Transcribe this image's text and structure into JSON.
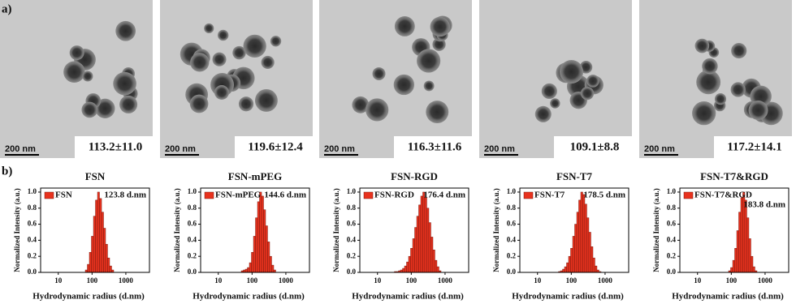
{
  "panel_a": {
    "label": "a)",
    "images": [
      {
        "scale": "200 nm",
        "size": "113.2±11.0"
      },
      {
        "scale": "200 nm",
        "size": "119.6±12.4"
      },
      {
        "scale": "200 nm",
        "size": "116.3±11.6"
      },
      {
        "scale": "200 nm",
        "size": "109.1±8.8"
      },
      {
        "scale": "200 nm",
        "size": "117.2±14.1"
      }
    ]
  },
  "panel_b": {
    "label": "b)"
  },
  "chart_data": [
    {
      "type": "histogram",
      "title": "FSN",
      "annotation": "123.8 d.nm",
      "xlabel": "Hydrodynamic radius (d.nm)",
      "ylabel": "Normalized Intensity (a.u.)",
      "bins": [
        31.6,
        36.3,
        41.7,
        47.9,
        55.0,
        63.1,
        72.4,
        83.2,
        95.5,
        110,
        126,
        145,
        166,
        191,
        219,
        251,
        288,
        331,
        380,
        437,
        501,
        575,
        661,
        759,
        871
      ],
      "series": [
        {
          "name": "FSN",
          "color": "#e8321e",
          "values": [
            0,
            0,
            0,
            0,
            0,
            0.03,
            0.1,
            0.25,
            0.45,
            0.7,
            0.9,
            1.0,
            0.92,
            0.75,
            0.55,
            0.35,
            0.18,
            0.08,
            0.03,
            0,
            0,
            0,
            0,
            0
          ]
        }
      ],
      "xlim": [
        3,
        5000
      ],
      "xticks": [
        10,
        100,
        1000
      ],
      "log_x": true,
      "ylim": [
        0,
        1.05
      ],
      "yticks": [
        {
          "value": 0,
          "label": "0.0"
        },
        0.2,
        0.4,
        0.6,
        0.8,
        {
          "value": 1,
          "label": "1.0"
        }
      ]
    },
    {
      "type": "histogram",
      "title": "FSN-mPEG",
      "annotation": "144.6 d.nm",
      "xlabel": "Hydrodynamic radius (d.nm)",
      "ylabel": "Normalized Intensity (a.u.)",
      "bins": [
        31.6,
        36.3,
        41.7,
        47.9,
        55.0,
        63.1,
        72.4,
        83.2,
        95.5,
        110,
        126,
        145,
        166,
        191,
        219,
        251,
        288,
        331,
        380,
        437,
        501,
        575,
        661,
        759,
        871
      ],
      "series": [
        {
          "name": "FSN-mPEG",
          "color": "#e8321e",
          "values": [
            0,
            0,
            0,
            0.02,
            0.03,
            0.04,
            0.06,
            0.12,
            0.25,
            0.45,
            0.68,
            0.88,
            1.0,
            0.95,
            0.78,
            0.58,
            0.38,
            0.2,
            0.09,
            0.03,
            0,
            0,
            0,
            0
          ]
        }
      ],
      "xlim": [
        3,
        5000
      ],
      "xticks": [
        10,
        100,
        1000
      ],
      "log_x": true,
      "ylim": [
        0,
        1.05
      ],
      "yticks": [
        {
          "value": 0,
          "label": "0.0"
        },
        0.2,
        0.4,
        0.6,
        0.8,
        {
          "value": 1,
          "label": "1.0"
        }
      ]
    },
    {
      "type": "histogram",
      "title": "FSN-RGD",
      "annotation": "176.4 d.nm",
      "xlabel": "Hydrodynamic radius (d.nm)",
      "ylabel": "Normalized Intensity (a.u.)",
      "bins": [
        31.6,
        36.3,
        41.7,
        47.9,
        55.0,
        63.1,
        72.4,
        83.2,
        95.5,
        110,
        126,
        145,
        166,
        191,
        219,
        251,
        288,
        331,
        380,
        437,
        501,
        575,
        661,
        759,
        871
      ],
      "series": [
        {
          "name": "FSN-RGD",
          "color": "#e8321e",
          "values": [
            0.01,
            0.01,
            0.02,
            0.03,
            0.05,
            0.08,
            0.13,
            0.2,
            0.3,
            0.42,
            0.56,
            0.7,
            0.84,
            0.95,
            1.0,
            0.93,
            0.8,
            0.62,
            0.44,
            0.28,
            0.15,
            0.07,
            0.02,
            0
          ]
        }
      ],
      "xlim": [
        3,
        5000
      ],
      "xticks": [
        10,
        100,
        1000
      ],
      "log_x": true,
      "ylim": [
        0,
        1.05
      ],
      "yticks": [
        {
          "value": 0,
          "label": "0.0"
        },
        0.2,
        0.4,
        0.6,
        0.8,
        {
          "value": 1,
          "label": "1.0"
        }
      ]
    },
    {
      "type": "histogram",
      "title": "FSN-T7",
      "annotation": "178.5 d.nm",
      "xlabel": "Hydrodynamic radius (d.nm)",
      "ylabel": "Normalized Intensity (a.u.)",
      "bins": [
        31.6,
        36.3,
        41.7,
        47.9,
        55.0,
        63.1,
        72.4,
        83.2,
        95.5,
        110,
        126,
        145,
        166,
        191,
        219,
        251,
        288,
        331,
        380,
        437,
        501,
        575,
        661,
        759,
        871
      ],
      "series": [
        {
          "name": "FSN-T7",
          "color": "#e8321e",
          "values": [
            0,
            0,
            0.01,
            0.02,
            0.04,
            0.07,
            0.12,
            0.2,
            0.3,
            0.45,
            0.6,
            0.75,
            0.9,
            1.0,
            0.97,
            0.85,
            0.68,
            0.5,
            0.32,
            0.18,
            0.08,
            0.03,
            0.01,
            0
          ]
        }
      ],
      "xlim": [
        3,
        5000
      ],
      "xticks": [
        10,
        100,
        1000
      ],
      "log_x": true,
      "ylim": [
        0,
        1.05
      ],
      "yticks": [
        {
          "value": 0,
          "label": "0.0"
        },
        0.2,
        0.4,
        0.6,
        0.8,
        {
          "value": 1,
          "label": "1.0"
        }
      ]
    },
    {
      "type": "histogram",
      "title": "FSN-T7&RGD",
      "annotation": "183.8 d.nm",
      "xlabel": "Hydrodynamic radius (d.nm)",
      "ylabel": "Normalized Intensity (a.u.)",
      "bins": [
        31.6,
        36.3,
        41.7,
        47.9,
        55.0,
        63.1,
        72.4,
        83.2,
        95.5,
        110,
        126,
        145,
        166,
        191,
        219,
        251,
        288,
        331,
        380,
        437,
        501,
        575,
        661,
        759,
        871
      ],
      "series": [
        {
          "name": "FSN-T7&RGD",
          "color": "#e8321e",
          "values": [
            0,
            0,
            0,
            0,
            0,
            0,
            0,
            0.02,
            0.06,
            0.15,
            0.3,
            0.52,
            0.75,
            0.93,
            1.0,
            0.9,
            0.68,
            0.42,
            0.2,
            0.07,
            0.02,
            0,
            0,
            0
          ]
        }
      ],
      "xlim": [
        3,
        5000
      ],
      "xticks": [
        10,
        100,
        1000
      ],
      "log_x": true,
      "ylim": [
        0,
        1.05
      ],
      "yticks": [
        {
          "value": 0,
          "label": "0.0"
        },
        0.2,
        0.4,
        0.6,
        0.8,
        {
          "value": 1,
          "label": "1.0"
        }
      ]
    }
  ]
}
